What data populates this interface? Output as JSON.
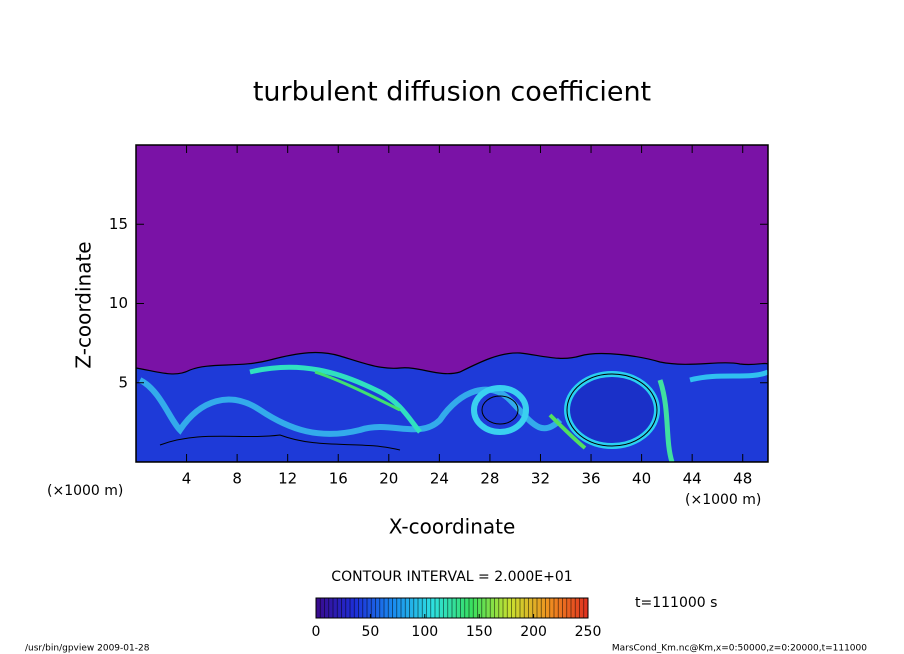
{
  "chart_data": {
    "type": "contour",
    "title": "turbulent diffusion coefficient",
    "xlabel": "X-coordinate",
    "ylabel": "Z-coordinate",
    "x_unit_label": "(×1000 m)",
    "xlim": [
      0,
      50
    ],
    "xticks": [
      4,
      8,
      12,
      16,
      20,
      24,
      28,
      32,
      36,
      40,
      44,
      48
    ],
    "ylim": [
      0,
      20
    ],
    "yticks": [
      5,
      10,
      15
    ],
    "background_color": "#7a12a6",
    "contour_interval_label": "CONTOUR INTERVAL = 2.000E+01",
    "time_label": "t=111000 s",
    "colorbar": {
      "lim": [
        0,
        250
      ],
      "ticks": [
        0,
        50,
        100,
        150,
        200,
        250
      ],
      "colors": [
        "#3a0a8c",
        "#1d2ed8",
        "#1a8cf0",
        "#2ee0e0",
        "#38e060",
        "#c8e030",
        "#f09020",
        "#e03020"
      ]
    },
    "footer_left": "/usr/bin/gpview  2009-01-28",
    "footer_right": "MarsCond_Km.nc@Km,x=0:50000,z=0:20000,t=111000"
  }
}
